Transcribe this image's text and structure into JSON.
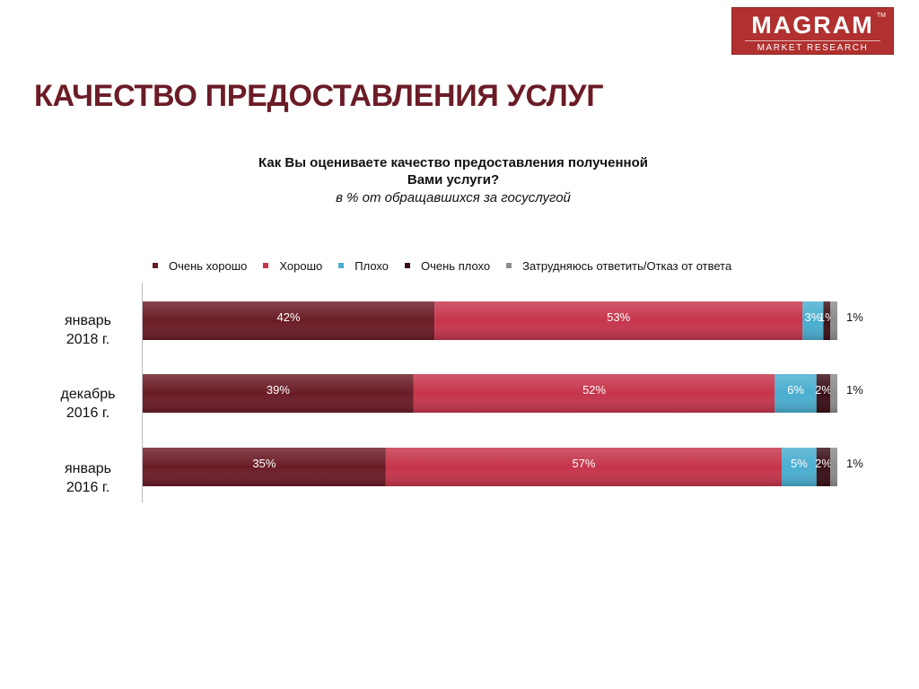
{
  "logo": {
    "name": "MAGRAM",
    "tm": "TM",
    "subtitle": "MARKET RESEARCH"
  },
  "page_title": "КАЧЕСТВО ПРЕДОСТАВЛЕНИЯ УСЛУГ",
  "chart_data": {
    "type": "bar",
    "orientation": "horizontal",
    "stacked": true,
    "title": "Как Вы оцениваете качество предоставления полученной Вами услуги?",
    "title_lines": [
      "Как Вы оцениваете качество предоставления полученной",
      "Вами услуги?"
    ],
    "subtitle": "в % от обращавшихся за госуслугой",
    "legend_position": "top",
    "grid": false,
    "categories": [
      {
        "label": "январь 2018 г.",
        "lines": [
          "январь",
          "2018 г."
        ]
      },
      {
        "label": "декабрь 2016 г.",
        "lines": [
          "декабрь",
          "2016 г."
        ]
      },
      {
        "label": "январь 2016 г.",
        "lines": [
          "январь",
          "2016 г."
        ]
      }
    ],
    "series": [
      {
        "name": "Очень хорошо",
        "color": "#6b1c26",
        "values": [
          42,
          39,
          35
        ]
      },
      {
        "name": "Хорошо",
        "color": "#c6354b",
        "values": [
          53,
          52,
          57
        ]
      },
      {
        "name": "Плохо",
        "color": "#4aaed0",
        "values": [
          3,
          6,
          5
        ]
      },
      {
        "name": "Очень плохо",
        "color": "#3a0f17",
        "values": [
          1,
          2,
          2
        ]
      },
      {
        "name": "Затрудняюсь ответить/Отказ от ответа",
        "color": "#8d8d8d",
        "values": [
          1,
          1,
          1
        ]
      }
    ],
    "data_labels": [
      [
        "42%",
        "53%",
        "3%",
        "1%",
        "1%"
      ],
      [
        "39%",
        "52%",
        "6%",
        "2%",
        "1%"
      ],
      [
        "35%",
        "57%",
        "5%",
        "2%",
        "1%"
      ]
    ]
  }
}
